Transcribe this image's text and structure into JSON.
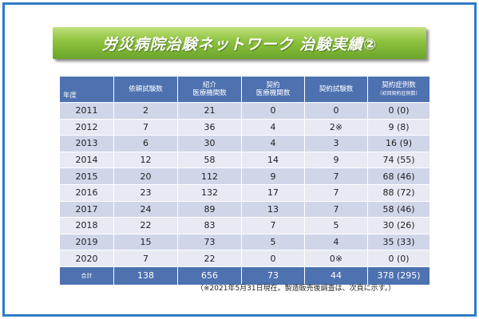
{
  "title": "労災病院治験ネットワーク 治験実績②",
  "headers": {
    "year": "年度",
    "requested": "依頼試験数",
    "referred_line1": "紹介",
    "referred_line2": "医療機関数",
    "contract_inst_line1": "契約",
    "contract_inst_line2": "医療機関数",
    "contract_trials": "契約試験数",
    "contract_cases_line1": "契約症例数",
    "contract_cases_line2": "（初回契約症例数）"
  },
  "rows": [
    {
      "year": "2011",
      "requested": "2",
      "referred": "21",
      "contract_inst": "0",
      "contract_trials": "0",
      "contract_cases": "0 (0)"
    },
    {
      "year": "2012",
      "requested": "7",
      "referred": "36",
      "contract_inst": "4",
      "contract_trials": "2※",
      "contract_cases": "9 (8)"
    },
    {
      "year": "2013",
      "requested": "6",
      "referred": "30",
      "contract_inst": "4",
      "contract_trials": "3",
      "contract_cases": "16 (9)"
    },
    {
      "year": "2014",
      "requested": "12",
      "referred": "58",
      "contract_inst": "14",
      "contract_trials": "9",
      "contract_cases": "74 (55)"
    },
    {
      "year": "2015",
      "requested": "20",
      "referred": "112",
      "contract_inst": "9",
      "contract_trials": "7",
      "contract_cases": "68 (46)"
    },
    {
      "year": "2016",
      "requested": "23",
      "referred": "132",
      "contract_inst": "17",
      "contract_trials": "7",
      "contract_cases": "88 (72)"
    },
    {
      "year": "2017",
      "requested": "24",
      "referred": "89",
      "contract_inst": "13",
      "contract_trials": "7",
      "contract_cases": "58 (46)"
    },
    {
      "year": "2018",
      "requested": "22",
      "referred": "83",
      "contract_inst": "7",
      "contract_trials": "5",
      "contract_cases": "30 (26)"
    },
    {
      "year": "2019",
      "requested": "15",
      "referred": "73",
      "contract_inst": "5",
      "contract_trials": "4",
      "contract_cases": "35 (33)"
    },
    {
      "year": "2020",
      "requested": "7",
      "referred": "22",
      "contract_inst": "0",
      "contract_trials": "0※",
      "contract_cases": "0 (0)"
    }
  ],
  "totals": {
    "label": "合計",
    "requested": "138",
    "referred": "656",
    "contract_inst": "73",
    "contract_trials": "44",
    "contract_cases": "378 (295)"
  },
  "note": "（※2021年5月31日現在。製造販売後調査は、次頁に示す。）",
  "colors": {
    "frame": "#2e7cc4",
    "title_green": "#8dc23e",
    "header_blue": "#4e71b0",
    "row_dark": "#cfd6e8",
    "row_light": "#e7eaf3"
  }
}
